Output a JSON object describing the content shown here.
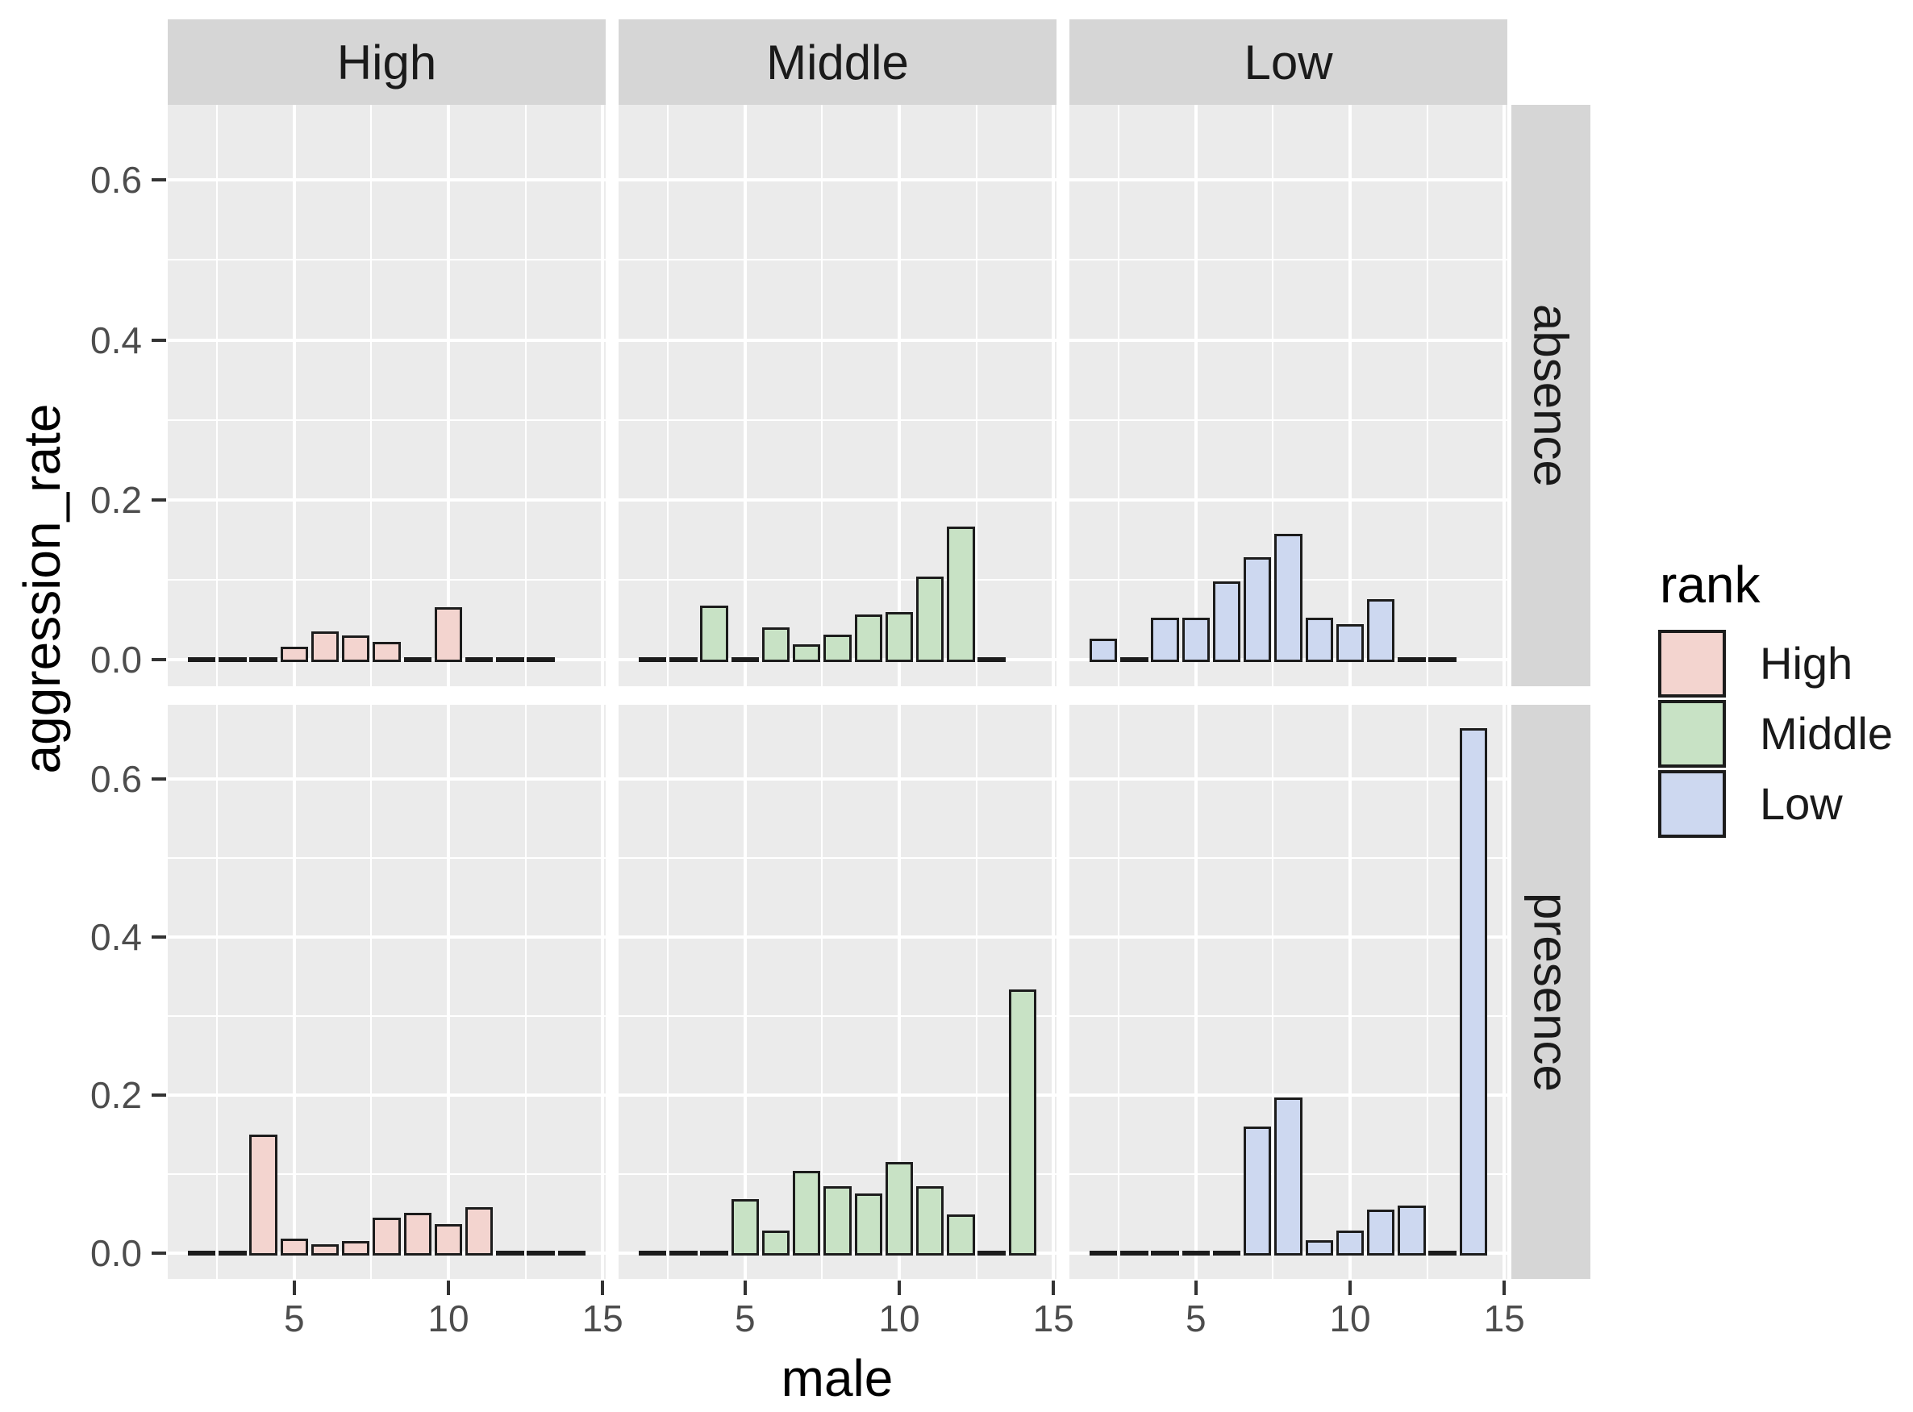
{
  "figure_title": "",
  "axes": {
    "xlabel": "male",
    "ylabel": "aggression_rate",
    "x_tick_labels": [
      "5",
      "10",
      "15"
    ],
    "y_tick_labels": [
      "0.0",
      "0.2",
      "0.4",
      "0.6"
    ]
  },
  "facets": {
    "columns": [
      "High",
      "Middle",
      "Low"
    ],
    "rows": [
      "absence",
      "presence"
    ]
  },
  "legend": {
    "title": "rank",
    "entries": [
      {
        "label": "High",
        "color": "#f3d4cf"
      },
      {
        "label": "Middle",
        "color": "#c8e2c5"
      },
      {
        "label": "Low",
        "color": "#cdd8f0"
      }
    ]
  },
  "colors": {
    "panel_background": "#ebebeb",
    "strip_background": "#d6d6d6",
    "grid": "#ffffff",
    "bar_outline": "#1c1c1c",
    "tick_text": "#4d4d4d"
  },
  "chart_data": {
    "type": "bar",
    "title": "",
    "xlabel": "male",
    "ylabel": "aggression_rate",
    "xlim": [
      0.9,
      15.1
    ],
    "ylim": [
      -0.033,
      0.694
    ],
    "x_ticks": [
      5,
      10,
      15
    ],
    "y_ticks": [
      0.0,
      0.2,
      0.4,
      0.6
    ],
    "x_minor_gridlines": [
      2.5,
      7.5,
      12.5
    ],
    "y_minor_gridlines": [
      0.1,
      0.3,
      0.5
    ],
    "bar_width": 0.9,
    "grid": true,
    "legend_position": "right",
    "facet_grid": "presence_row ~ rank_column",
    "panels": [
      {
        "row": "absence",
        "col": "High",
        "color": "#f3d4cf",
        "x": [
          2,
          3,
          4,
          5,
          6,
          7,
          8,
          9,
          10,
          11,
          12,
          13
        ],
        "y": [
          0,
          0,
          0,
          0.013,
          0.033,
          0.028,
          0.019,
          0,
          0.063,
          0,
          0,
          0
        ]
      },
      {
        "row": "absence",
        "col": "Middle",
        "color": "#c8e2c5",
        "x": [
          2,
          3,
          4,
          5,
          6,
          7,
          8,
          9,
          10,
          11,
          12,
          13
        ],
        "y": [
          0,
          0,
          0.065,
          0,
          0.038,
          0.016,
          0.029,
          0.054,
          0.057,
          0.101,
          0.164,
          0
        ]
      },
      {
        "row": "absence",
        "col": "Low",
        "color": "#cdd8f0",
        "x": [
          2,
          3,
          4,
          5,
          6,
          7,
          8,
          9,
          10,
          11,
          12,
          13
        ],
        "y": [
          0.023,
          0,
          0.05,
          0.05,
          0.095,
          0.125,
          0.155,
          0.05,
          0.042,
          0.073,
          0,
          0
        ]
      },
      {
        "row": "presence",
        "col": "High",
        "color": "#f3d4cf",
        "x": [
          2,
          3,
          4,
          5,
          6,
          7,
          8,
          9,
          10,
          11,
          12,
          13,
          14
        ],
        "y": [
          0,
          0,
          0.147,
          0.015,
          0.008,
          0.012,
          0.042,
          0.048,
          0.033,
          0.055,
          0,
          0,
          0
        ]
      },
      {
        "row": "presence",
        "col": "Middle",
        "color": "#c8e2c5",
        "x": [
          2,
          3,
          4,
          5,
          6,
          7,
          8,
          9,
          10,
          11,
          12,
          13,
          14
        ],
        "y": [
          0,
          0,
          0,
          0.065,
          0.025,
          0.101,
          0.081,
          0.072,
          0.112,
          0.081,
          0.046,
          0,
          0.33
        ]
      },
      {
        "row": "presence",
        "col": "Low",
        "color": "#cdd8f0",
        "x": [
          2,
          3,
          4,
          5,
          6,
          7,
          8,
          9,
          10,
          11,
          12,
          13,
          14
        ],
        "y": [
          0,
          0,
          0,
          0,
          0,
          0.157,
          0.194,
          0.013,
          0.025,
          0.052,
          0.057,
          0,
          0.661
        ]
      }
    ]
  }
}
